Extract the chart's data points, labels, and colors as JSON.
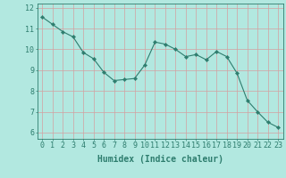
{
  "x": [
    0,
    1,
    2,
    3,
    4,
    5,
    6,
    7,
    8,
    9,
    10,
    11,
    12,
    13,
    14,
    15,
    16,
    17,
    18,
    19,
    20,
    21,
    22,
    23
  ],
  "y": [
    11.55,
    11.2,
    10.85,
    10.6,
    9.85,
    9.55,
    8.9,
    8.5,
    8.55,
    8.6,
    9.25,
    10.35,
    10.25,
    10.0,
    9.65,
    9.75,
    9.5,
    9.9,
    9.65,
    8.85,
    7.55,
    7.0,
    6.5,
    6.25
  ],
  "line_color": "#2e7d6e",
  "marker": "D",
  "marker_size": 2.2,
  "bg_color": "#b2e8e0",
  "grid_color": "#d4a0a0",
  "xlabel": "Humidex (Indice chaleur)",
  "ylim": [
    5.7,
    12.2
  ],
  "xlim": [
    -0.5,
    23.5
  ],
  "yticks": [
    6,
    7,
    8,
    9,
    10,
    11,
    12
  ],
  "xticks": [
    0,
    1,
    2,
    3,
    4,
    5,
    6,
    7,
    8,
    9,
    10,
    11,
    12,
    13,
    14,
    15,
    16,
    17,
    18,
    19,
    20,
    21,
    22,
    23
  ],
  "tick_color": "#2e7d6e",
  "label_color": "#2e7d6e",
  "axis_color": "#2e7d6e",
  "xlabel_fontsize": 7,
  "tick_fontsize": 6
}
